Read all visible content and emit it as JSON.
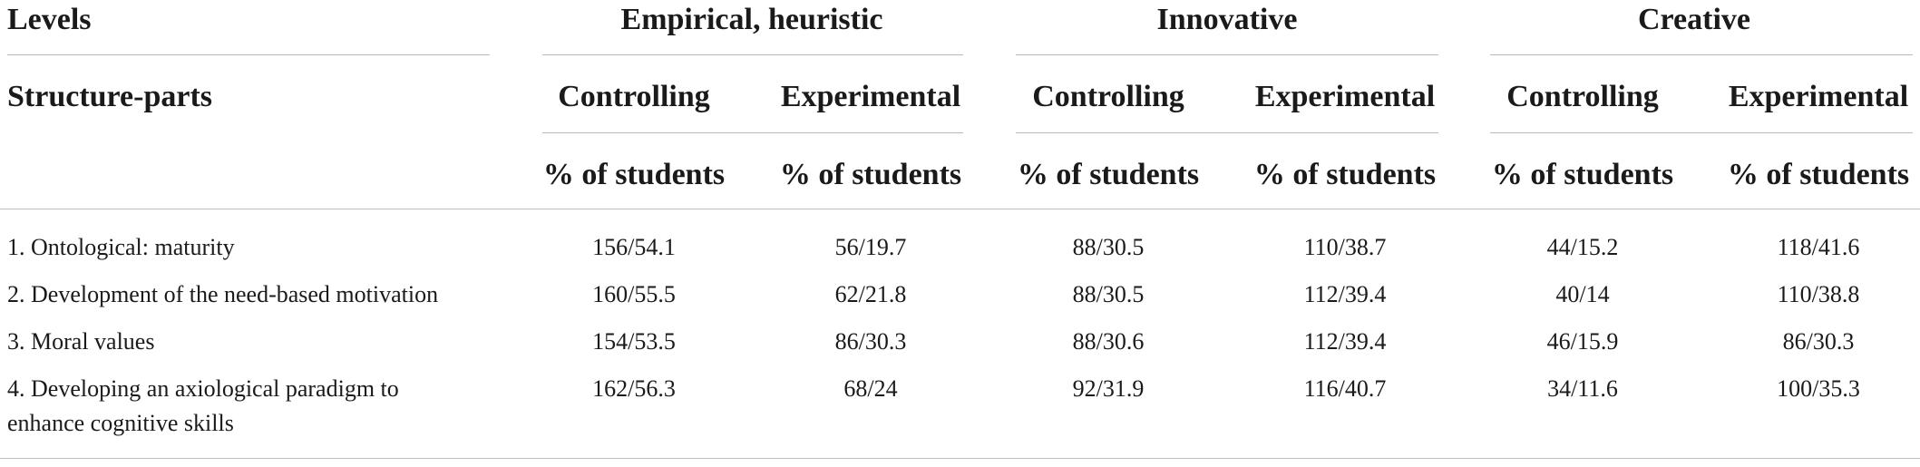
{
  "header": {
    "levels_label": "Levels",
    "structure_label": "Structure-parts",
    "groups": [
      {
        "title": "Empirical, heuristic",
        "col1": "Controlling",
        "col2": "Experimental",
        "unit1": "% of students",
        "unit2": "% of students"
      },
      {
        "title": "Innovative",
        "col1": "Controlling",
        "col2": "Experimental",
        "unit1": "% of students",
        "unit2": "% of students"
      },
      {
        "title": "Creative",
        "col1": "Controlling",
        "col2": "Experimental",
        "unit1": "% of students",
        "unit2": "% of students"
      }
    ]
  },
  "rows": [
    {
      "label": "1. Ontological: maturity",
      "values": [
        "156/54.1",
        "56/19.7",
        "88/30.5",
        "110/38.7",
        "44/15.2",
        "118/41.6"
      ]
    },
    {
      "label": "2. Development of the need-based motivation",
      "values": [
        "160/55.5",
        "62/21.8",
        "88/30.5",
        "112/39.4",
        "40/14",
        "110/38.8"
      ]
    },
    {
      "label": "3. Moral values",
      "values": [
        "154/53.5",
        "86/30.3",
        "88/30.6",
        "112/39.4",
        "46/15.9",
        "86/30.3"
      ]
    },
    {
      "label_line1": "4. Developing an axiological paradigm to",
      "label_line2": "enhance cognitive skills",
      "values": [
        "162/56.3",
        "68/24",
        "92/31.9",
        "116/40.7",
        "34/11.6",
        "100/35.3"
      ]
    }
  ]
}
